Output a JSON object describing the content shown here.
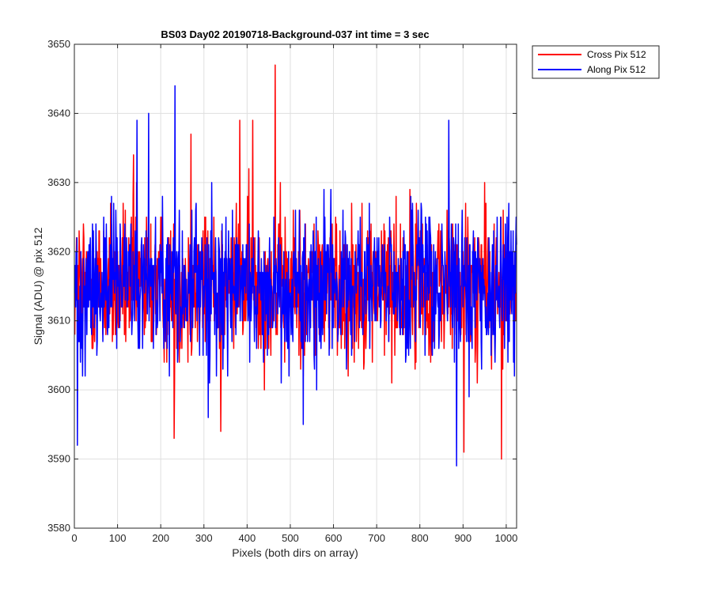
{
  "chart_data": {
    "type": "line",
    "title": "BS03 Day02 20190718-Background-037 int time = 3 sec",
    "xlabel": "Pixels (both dirs on array)",
    "ylabel": "Signal (ADU) @ pix 512",
    "xlim": [
      0,
      1024
    ],
    "ylim": [
      3580,
      3650
    ],
    "x_ticks": [
      0,
      100,
      200,
      300,
      400,
      500,
      600,
      700,
      800,
      900,
      1000
    ],
    "y_ticks": [
      3580,
      3590,
      3600,
      3610,
      3620,
      3630,
      3640,
      3650
    ],
    "grid": true,
    "legend_position": "outside top-right",
    "x_range": {
      "start": 1,
      "end": 1024,
      "step": 1
    },
    "noise_profile": {
      "mean": 3615,
      "typical_range": [
        3600,
        3630
      ]
    },
    "series": [
      {
        "name": "Cross Pix 512",
        "color": "#ff0000",
        "extremes": [
          {
            "x": 465,
            "y": 3647
          },
          {
            "x": 383,
            "y": 3639
          },
          {
            "x": 413,
            "y": 3639
          },
          {
            "x": 270,
            "y": 3637
          },
          {
            "x": 137,
            "y": 3634
          },
          {
            "x": 989,
            "y": 3590
          },
          {
            "x": 902,
            "y": 3591
          },
          {
            "x": 231,
            "y": 3593
          },
          {
            "x": 339,
            "y": 3594
          }
        ]
      },
      {
        "name": "Along Pix 512",
        "color": "#0000ff",
        "extremes": [
          {
            "x": 233,
            "y": 3644
          },
          {
            "x": 172,
            "y": 3640
          },
          {
            "x": 145,
            "y": 3639
          },
          {
            "x": 867,
            "y": 3639
          },
          {
            "x": 7,
            "y": 3592
          },
          {
            "x": 885,
            "y": 3589
          },
          {
            "x": 530,
            "y": 3595
          },
          {
            "x": 310,
            "y": 3596
          }
        ]
      }
    ]
  }
}
